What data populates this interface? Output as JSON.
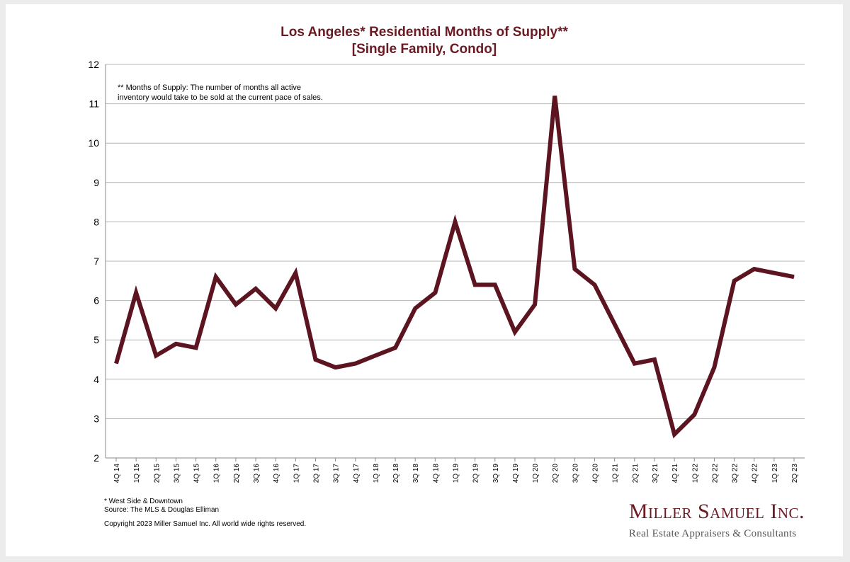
{
  "chart_data": {
    "type": "line",
    "title": "Los Angeles* Residential Months of Supply**",
    "subtitle": "[Single Family, Condo]",
    "xlabel": "",
    "ylabel": "",
    "ylim": [
      2,
      12
    ],
    "yticks": [
      "2",
      "3",
      "4",
      "5",
      "6",
      "7",
      "8",
      "9",
      "10",
      "11",
      "12"
    ],
    "grid": true,
    "categories": [
      "4Q 14",
      "1Q 15",
      "2Q 15",
      "3Q 15",
      "4Q 15",
      "1Q 16",
      "2Q 16",
      "3Q 16",
      "4Q 16",
      "1Q 17",
      "2Q 17",
      "3Q 17",
      "4Q 17",
      "1Q 18",
      "2Q 18",
      "3Q 18",
      "4Q 18",
      "1Q 19",
      "2Q 19",
      "3Q 19",
      "4Q 19",
      "1Q 20",
      "2Q 20",
      "3Q 20",
      "4Q 20",
      "1Q 21",
      "2Q 21",
      "3Q 21",
      "4Q 21",
      "1Q 22",
      "2Q 22",
      "3Q 22",
      "4Q 22",
      "1Q 23",
      "2Q 23"
    ],
    "series": [
      {
        "values": [
          4.4,
          6.2,
          4.6,
          4.9,
          4.8,
          6.6,
          5.9,
          6.3,
          5.8,
          6.7,
          4.5,
          4.3,
          4.4,
          4.6,
          4.8,
          5.8,
          6.2,
          8.0,
          6.4,
          6.4,
          5.2,
          5.9,
          11.2,
          6.8,
          6.4,
          5.4,
          4.4,
          4.5,
          2.6,
          3.1,
          4.3,
          6.5,
          6.8,
          6.7,
          6.6
        ],
        "color": "#5c1520"
      }
    ],
    "annotation": [
      "** Months of Supply: The number of months all active",
      "inventory would take to be sold at the current pace of sales."
    ]
  },
  "footnotes": {
    "line1": "* West Side & Downtown",
    "line2": "Source: The MLS & Douglas Elliman"
  },
  "copyright": "Copyright 2023 Miller Samuel Inc.  All world wide rights reserved.",
  "logo": {
    "name": "Miller Samuel Inc.",
    "tagline": "Real Estate Appraisers & Consultants"
  },
  "colors": {
    "title": "#6b1a24",
    "line": "#5c1520",
    "grid": "#b4b4b4"
  }
}
